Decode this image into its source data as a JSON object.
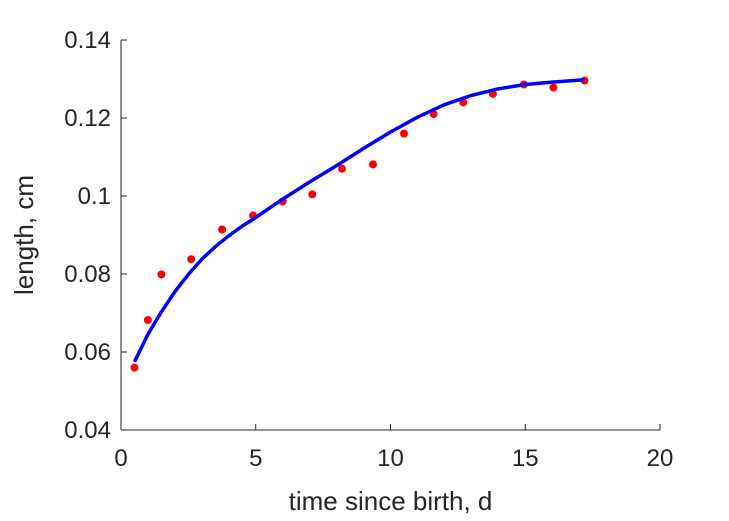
{
  "chart_data": {
    "type": "scatter",
    "title": "",
    "xlabel": "time since birth, d",
    "ylabel": "length, cm",
    "xlim": [
      0,
      20
    ],
    "ylim": [
      0.04,
      0.14
    ],
    "xticks": [
      0,
      5,
      10,
      15,
      20
    ],
    "yticks": [
      0.04,
      0.06,
      0.08,
      0.1,
      0.12,
      0.14
    ],
    "xtick_labels": [
      "0",
      "5",
      "10",
      "15",
      "20"
    ],
    "ytick_labels": [
      "0.04",
      "0.06",
      "0.08",
      "0.1",
      "0.12",
      "0.14"
    ],
    "grid": false,
    "legend": false,
    "series": [
      {
        "kind": "points",
        "color": "#ff0000",
        "x": [
          0.5,
          1.0,
          1.5,
          2.6,
          3.75,
          4.9,
          6.0,
          7.1,
          8.2,
          9.35,
          10.5,
          11.6,
          12.7,
          13.8,
          14.95,
          16.05,
          17.2
        ],
        "y": [
          0.056,
          0.0682,
          0.0799,
          0.0838,
          0.0914,
          0.095,
          0.0986,
          0.1004,
          0.107,
          0.1081,
          0.116,
          0.121,
          0.124,
          0.1262,
          0.1286,
          0.1278,
          0.1296
        ]
      },
      {
        "kind": "line",
        "color": "#0000ff",
        "x": [
          0.5,
          1.0,
          1.5,
          2.0,
          2.5,
          3.0,
          3.5,
          4.0,
          4.5,
          5.0,
          6.0,
          7.0,
          8.0,
          9.0,
          10.0,
          11.0,
          12.0,
          13.0,
          14.0,
          15.0,
          16.0,
          17.2
        ],
        "y": [
          0.0575,
          0.0645,
          0.0703,
          0.0755,
          0.0799,
          0.0838,
          0.087,
          0.0898,
          0.0923,
          0.0945,
          0.0992,
          0.1036,
          0.1078,
          0.1122,
          0.1164,
          0.1202,
          0.1234,
          0.1258,
          0.1275,
          0.1286,
          0.1292,
          0.1298
        ]
      }
    ]
  }
}
